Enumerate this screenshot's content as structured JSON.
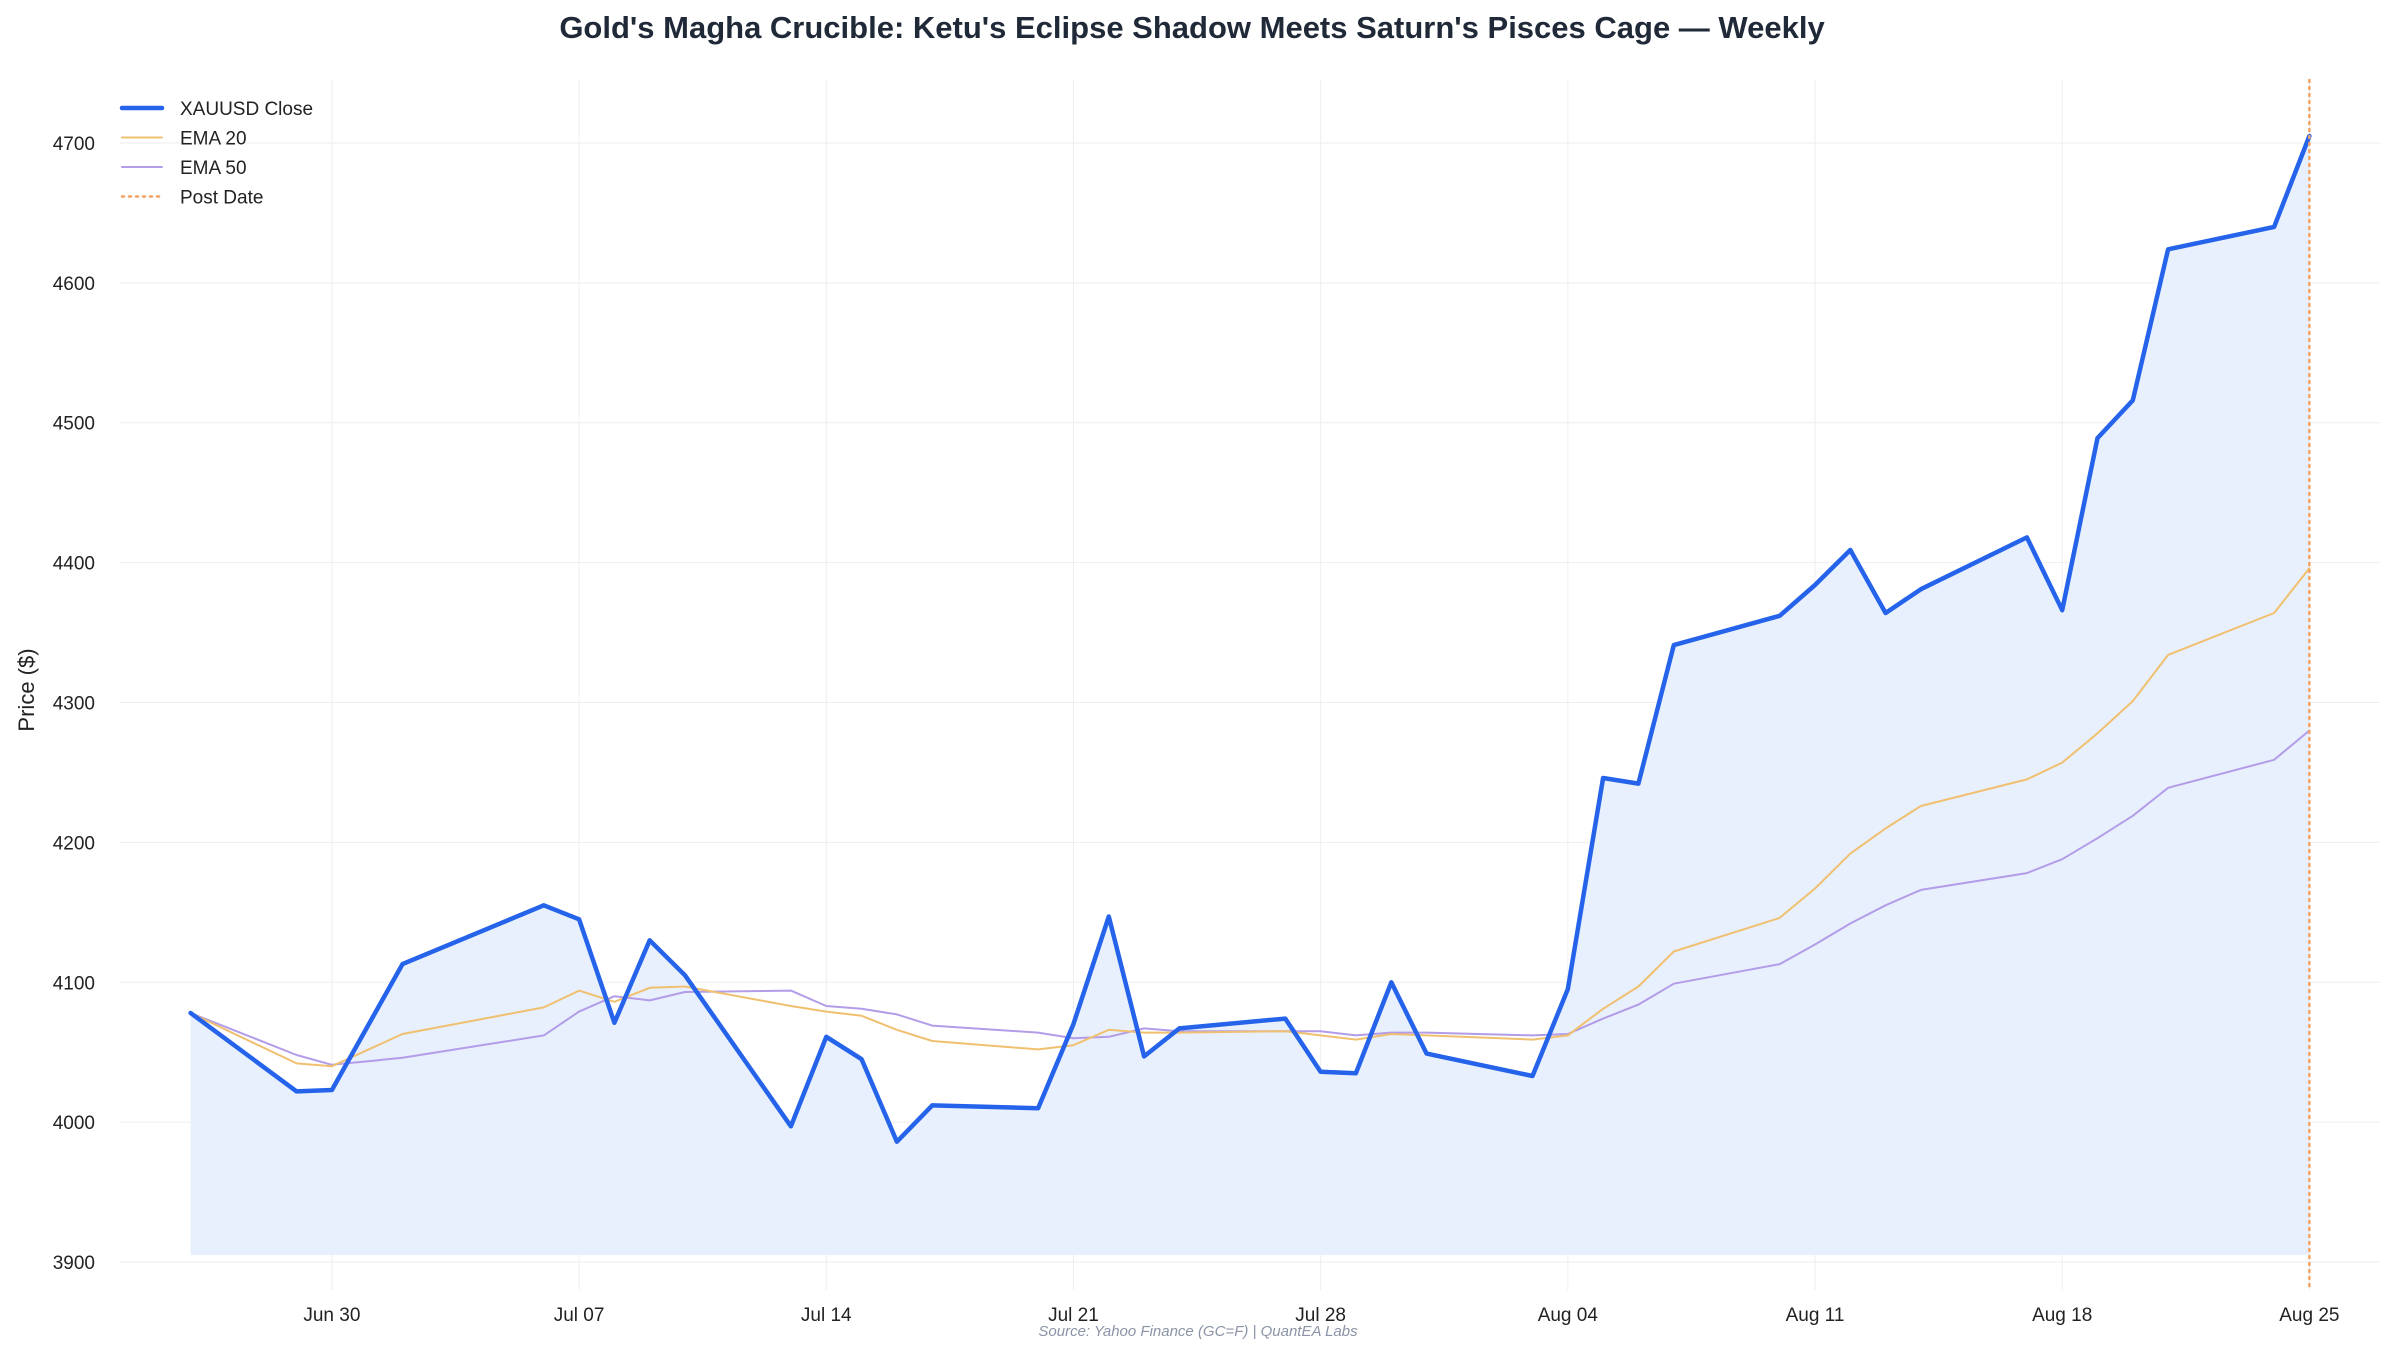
{
  "chart_data": {
    "type": "line",
    "title": "Gold's Magha Crucible: Ketu's Eclipse Shadow Meets Saturn's Pisces Cage — Weekly",
    "xlabel": "",
    "ylabel": "Price ($)",
    "source": "Source: Yahoo Finance (GC=F) | QuantEA Labs",
    "grid": true,
    "legend_position": "top-left",
    "ylim": [
      3880,
      4745
    ],
    "xlim": [
      "2025-06-24",
      "2025-08-27"
    ],
    "y_ticks": [
      3900,
      4000,
      4100,
      4200,
      4300,
      4400,
      4500,
      4600,
      4700
    ],
    "x_ticks": [
      {
        "date": "2025-06-30",
        "label": "Jun 30"
      },
      {
        "date": "2025-07-07",
        "label": "Jul 07"
      },
      {
        "date": "2025-07-14",
        "label": "Jul 14"
      },
      {
        "date": "2025-07-21",
        "label": "Jul 21"
      },
      {
        "date": "2025-07-28",
        "label": "Jul 28"
      },
      {
        "date": "2025-08-04",
        "label": "Aug 04"
      },
      {
        "date": "2025-08-11",
        "label": "Aug 11"
      },
      {
        "date": "2025-08-18",
        "label": "Aug 18"
      },
      {
        "date": "2025-08-25",
        "label": "Aug 25"
      }
    ],
    "fill_baseline": 3905,
    "colors": {
      "close": "#2563eb",
      "fill": "#e8f0fd",
      "ema20": "#f0c070",
      "ema50": "#b39ce8",
      "post_date": "#f4a261",
      "grid": "#eeeeee"
    },
    "x": [
      "2025-06-26",
      "2025-06-29",
      "2025-06-30",
      "2025-07-02",
      "2025-07-06",
      "2025-07-07",
      "2025-07-08",
      "2025-07-09",
      "2025-07-10",
      "2025-07-13",
      "2025-07-14",
      "2025-07-15",
      "2025-07-16",
      "2025-07-17",
      "2025-07-20",
      "2025-07-21",
      "2025-07-22",
      "2025-07-23",
      "2025-07-24",
      "2025-07-27",
      "2025-07-28",
      "2025-07-29",
      "2025-07-30",
      "2025-07-31",
      "2025-08-03",
      "2025-08-04",
      "2025-08-05",
      "2025-08-06",
      "2025-08-07",
      "2025-08-10",
      "2025-08-11",
      "2025-08-12",
      "2025-08-13",
      "2025-08-14",
      "2025-08-17",
      "2025-08-18",
      "2025-08-19",
      "2025-08-20",
      "2025-08-21",
      "2025-08-24",
      "2025-08-25"
    ],
    "series": [
      {
        "name": "XAUUSD Close",
        "values": [
          4078,
          4022,
          4023,
          4113,
          4155,
          4145,
          4071,
          4130,
          4105,
          3997,
          4061,
          4045,
          3986,
          4012,
          4010,
          4070,
          4147,
          4047,
          4067,
          4074,
          4036,
          4035,
          4100,
          4049,
          4033,
          4095,
          4246,
          4242,
          4341,
          4362,
          4384,
          4409,
          4364,
          4381,
          4418,
          4366,
          4489,
          4516,
          4624,
          4640,
          4705
        ]
      },
      {
        "name": "EMA 20",
        "values": [
          4078,
          4042,
          4040,
          4063,
          4082,
          4094,
          4086,
          4096,
          4097,
          4083,
          4079,
          4076,
          4066,
          4058,
          4052,
          4055,
          4066,
          4064,
          4064,
          4065,
          4062,
          4059,
          4063,
          4062,
          4059,
          4062,
          4081,
          4097,
          4122,
          4146,
          4167,
          4192,
          4210,
          4226,
          4245,
          4257,
          4278,
          4301,
          4334,
          4364,
          4396
        ]
      },
      {
        "name": "EMA 50",
        "values": [
          4078,
          4048,
          4041,
          4046,
          4062,
          4079,
          4090,
          4087,
          4093,
          4094,
          4083,
          4081,
          4077,
          4069,
          4064,
          4060,
          4061,
          4067,
          4065,
          4065,
          4065,
          4062,
          4064,
          4064,
          4062,
          4063,
          4074,
          4084,
          4099,
          4113,
          4127,
          4142,
          4155,
          4166,
          4178,
          4188,
          4203,
          4219,
          4239,
          4259,
          4280
        ]
      }
    ],
    "post_date": {
      "name": "Post Date",
      "x": "2025-08-25"
    }
  }
}
